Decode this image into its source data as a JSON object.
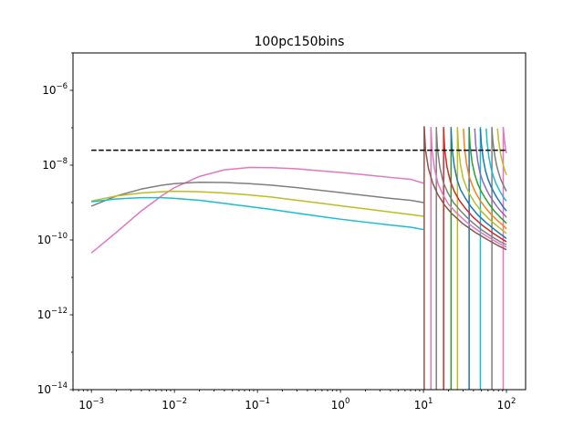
{
  "chart_data": {
    "type": "line",
    "title": "100pc150bins",
    "xlabel": "",
    "ylabel": "",
    "x_scale": "log",
    "y_scale": "log",
    "xlim": [
      0.0006,
      170
    ],
    "ylim": [
      1e-14,
      1e-05
    ],
    "x_ticks": [
      {
        "value": 0.001,
        "base": "10",
        "exp": "−3"
      },
      {
        "value": 0.01,
        "base": "10",
        "exp": "−2"
      },
      {
        "value": 0.1,
        "base": "10",
        "exp": "−1"
      },
      {
        "value": 1,
        "base": "10",
        "exp": "0"
      },
      {
        "value": 10,
        "base": "10",
        "exp": "1"
      },
      {
        "value": 100,
        "base": "10",
        "exp": "2"
      }
    ],
    "y_ticks": [
      {
        "value": 1e-14,
        "base": "10",
        "exp": "−14"
      },
      {
        "value": 1e-12,
        "base": "10",
        "exp": "−12"
      },
      {
        "value": 1e-10,
        "base": "10",
        "exp": "−10"
      },
      {
        "value": 1e-08,
        "base": "10",
        "exp": "−8"
      },
      {
        "value": 1e-06,
        "base": "10",
        "exp": "−6"
      }
    ],
    "grid": false,
    "legend": "none",
    "reference_line": {
      "y": 2.5e-08,
      "x": [
        0.001,
        100
      ],
      "color": "#000000",
      "style": "dashed"
    },
    "series": [
      {
        "color": "#e377c2",
        "x": [
          0.001,
          0.002,
          0.004,
          0.007,
          0.01,
          0.02,
          0.04,
          0.08,
          0.15,
          0.3,
          0.6,
          1,
          2,
          4,
          7,
          10
        ],
        "y": [
          4.5e-11,
          1.6e-10,
          6e-10,
          1.5e-09,
          2.5e-09,
          5e-09,
          7.5e-09,
          8.7e-09,
          8.6e-09,
          8e-09,
          7e-09,
          6.4e-09,
          5.5e-09,
          4.7e-09,
          4.2e-09,
          3.3e-09
        ]
      },
      {
        "color": "#7f7f7f",
        "x": [
          0.001,
          0.002,
          0.004,
          0.007,
          0.01,
          0.02,
          0.04,
          0.08,
          0.15,
          0.3,
          0.6,
          1,
          2,
          4,
          7,
          10
        ],
        "y": [
          8e-10,
          1.5e-09,
          2.3e-09,
          2.9e-09,
          3.2e-09,
          3.5e-09,
          3.45e-09,
          3.2e-09,
          2.9e-09,
          2.5e-09,
          2.1e-09,
          1.85e-09,
          1.55e-09,
          1.3e-09,
          1.15e-09,
          1e-09
        ]
      },
      {
        "color": "#bcbd22",
        "x": [
          0.001,
          0.002,
          0.004,
          0.007,
          0.01,
          0.02,
          0.04,
          0.08,
          0.15,
          0.3,
          0.6,
          1,
          2,
          4,
          7,
          10
        ],
        "y": [
          1.1e-09,
          1.5e-09,
          1.8e-09,
          1.95e-09,
          2e-09,
          1.95e-09,
          1.8e-09,
          1.6e-09,
          1.4e-09,
          1.15e-09,
          9.5e-10,
          8.2e-10,
          6.8e-10,
          5.6e-10,
          4.8e-10,
          4.3e-10
        ]
      },
      {
        "color": "#17becf",
        "x": [
          0.001,
          0.002,
          0.004,
          0.007,
          0.01,
          0.02,
          0.04,
          0.08,
          0.15,
          0.3,
          0.6,
          1,
          2,
          4,
          7,
          10
        ],
        "y": [
          1.05e-09,
          1.25e-09,
          1.35e-09,
          1.35e-09,
          1.3e-09,
          1.15e-09,
          9.5e-10,
          7.8e-10,
          6.5e-10,
          5.2e-10,
          4.2e-10,
          3.6e-10,
          3e-10,
          2.5e-10,
          2.2e-10,
          1.9e-10
        ]
      },
      {
        "color": "#8c564b",
        "x": [
          10.2,
          10.6,
          11.5,
          13,
          15,
          18,
          22,
          30,
          42,
          60,
          80,
          100
        ],
        "y": [
          1.1e-07,
          2.5e-08,
          8e-09,
          3.2e-09,
          1.6e-09,
          8.5e-10,
          5e-10,
          2.7e-10,
          1.6e-10,
          1e-10,
          7e-11,
          5.5e-11
        ]
      },
      {
        "color": "#e377c2",
        "x": [
          12.3,
          12.7,
          13.6,
          15,
          17,
          20,
          25,
          33,
          45,
          62,
          82,
          100
        ],
        "y": [
          1e-07,
          2.5e-08,
          8e-09,
          3.2e-09,
          1.7e-09,
          9e-10,
          5.3e-10,
          3e-10,
          1.8e-10,
          1.15e-10,
          8e-11,
          6.5e-11
        ]
      },
      {
        "color": "#7f7f7f",
        "x": [
          14.3,
          14.8,
          15.8,
          17.3,
          19.5,
          23,
          28,
          36,
          48,
          64,
          84,
          100
        ],
        "y": [
          9.5e-08,
          2.6e-08,
          8.5e-09,
          3.5e-09,
          1.9e-09,
          1e-09,
          6e-10,
          3.4e-10,
          2e-10,
          1.3e-10,
          9e-11,
          7.5e-11
        ]
      },
      {
        "color": "#d62728",
        "x": [
          17.5,
          18,
          19.2,
          21,
          23.5,
          27,
          32,
          40,
          52,
          68,
          86,
          100
        ],
        "y": [
          9.5e-08,
          2.7e-08,
          9e-09,
          3.8e-09,
          2e-09,
          1.15e-09,
          7e-10,
          4e-10,
          2.4e-10,
          1.55e-10,
          1.1e-10,
          9e-11
        ]
      },
      {
        "color": "#1f77b4",
        "x": [
          21.5,
          22.1,
          23.5,
          25.5,
          28,
          32,
          37,
          45,
          57,
          72,
          88,
          100
        ],
        "y": [
          9.5e-08,
          2.8e-08,
          9.5e-09,
          4e-09,
          2.2e-09,
          1.3e-09,
          8e-10,
          4.7e-10,
          2.9e-10,
          1.9e-10,
          1.35e-10,
          1.1e-10
        ]
      },
      {
        "color": "#bcbd22",
        "x": [
          25.7,
          26.4,
          28,
          30,
          33,
          37,
          42,
          50,
          61,
          75,
          90,
          100
        ],
        "y": [
          9.5e-08,
          3e-08,
          1e-08,
          4.5e-09,
          2.5e-09,
          1.5e-09,
          9.5e-10,
          5.8e-10,
          3.7e-10,
          2.5e-10,
          1.8e-10,
          1.5e-10
        ]
      },
      {
        "color": "#ff7f0e",
        "x": [
          30.3,
          31.1,
          33,
          35.5,
          39,
          43,
          48,
          56,
          66,
          78,
          92,
          100
        ],
        "y": [
          9.5e-08,
          3.2e-08,
          1.1e-08,
          5e-09,
          2.8e-09,
          1.75e-09,
          1.15e-09,
          7.2e-10,
          4.7e-10,
          3.3e-10,
          2.4e-10,
          2e-10
        ]
      },
      {
        "color": "#2ca02c",
        "x": [
          35.5,
          36.4,
          38.5,
          41.5,
          45,
          49.5,
          55,
          62,
          71,
          82,
          94,
          100
        ],
        "y": [
          9.5e-08,
          3.4e-08,
          1.2e-08,
          5.6e-09,
          3.2e-09,
          2e-09,
          1.35e-09,
          9e-10,
          6e-10,
          4.3e-10,
          3.2e-10,
          2.8e-10
        ]
      },
      {
        "color": "#9467bd",
        "x": [
          41.5,
          42.6,
          45,
          48,
          52,
          57,
          62,
          69,
          77,
          86,
          96,
          100
        ],
        "y": [
          9.5e-08,
          3.6e-08,
          1.3e-08,
          6.2e-09,
          3.6e-09,
          2.3e-09,
          1.6e-09,
          1.1e-09,
          7.8e-10,
          5.8e-10,
          4.5e-10,
          4e-10
        ]
      },
      {
        "color": "#1f77b4",
        "x": [
          48.5,
          49.8,
          52.5,
          56,
          60,
          65,
          70,
          76,
          83,
          90,
          97,
          100
        ],
        "y": [
          9.5e-08,
          3.8e-08,
          1.45e-08,
          7e-09,
          4.2e-09,
          2.7e-09,
          1.95e-09,
          1.4e-09,
          1.05e-09,
          8e-10,
          6.5e-10,
          6e-10
        ]
      },
      {
        "color": "#17becf",
        "x": [
          57,
          58.5,
          61.5,
          65.5,
          70,
          75,
          80,
          85,
          90,
          95,
          100
        ],
        "y": [
          9.5e-08,
          4e-08,
          1.6e-08,
          8e-09,
          4.8e-09,
          3.2e-09,
          2.4e-09,
          1.85e-09,
          1.5e-09,
          1.25e-09,
          1.1e-09
        ]
      },
      {
        "color": "#7f7f7f",
        "x": [
          66.8,
          68.5,
          72,
          76,
          80,
          85,
          90,
          95,
          100
        ],
        "y": [
          9.5e-08,
          4.4e-08,
          1.9e-08,
          1e-08,
          6.5e-09,
          4.3e-09,
          3.2e-09,
          2.5e-09,
          2e-09
        ]
      },
      {
        "color": "#bcbd22",
        "x": [
          78,
          80,
          84,
          88,
          92,
          96,
          100
        ],
        "y": [
          9.5e-08,
          5e-08,
          2.3e-08,
          1.4e-08,
          9.5e-09,
          7e-09,
          5.5e-09
        ]
      },
      {
        "color": "#e377c2",
        "x": [
          91.5,
          93.5,
          96,
          98,
          100
        ],
        "y": [
          1e-07,
          6e-08,
          3.6e-08,
          2.6e-08,
          2.1e-08
        ]
      }
    ],
    "vertical_edges": [
      {
        "color": "#8c564b",
        "x": 10.2
      },
      {
        "color": "#e377c2",
        "x": 12.3
      },
      {
        "color": "#7f7f7f",
        "x": 14.3
      },
      {
        "color": "#d62728",
        "x": 17.5
      },
      {
        "color": "#2ca02c",
        "x": 21.5
      },
      {
        "color": "#bcbd22",
        "x": 25.7
      },
      {
        "color": "#1f77b4",
        "x": 35.5
      },
      {
        "color": "#17becf",
        "x": 48.5
      },
      {
        "color": "#7f7f7f",
        "x": 66.8
      },
      {
        "color": "#e377c2",
        "x": 91.5
      }
    ]
  }
}
